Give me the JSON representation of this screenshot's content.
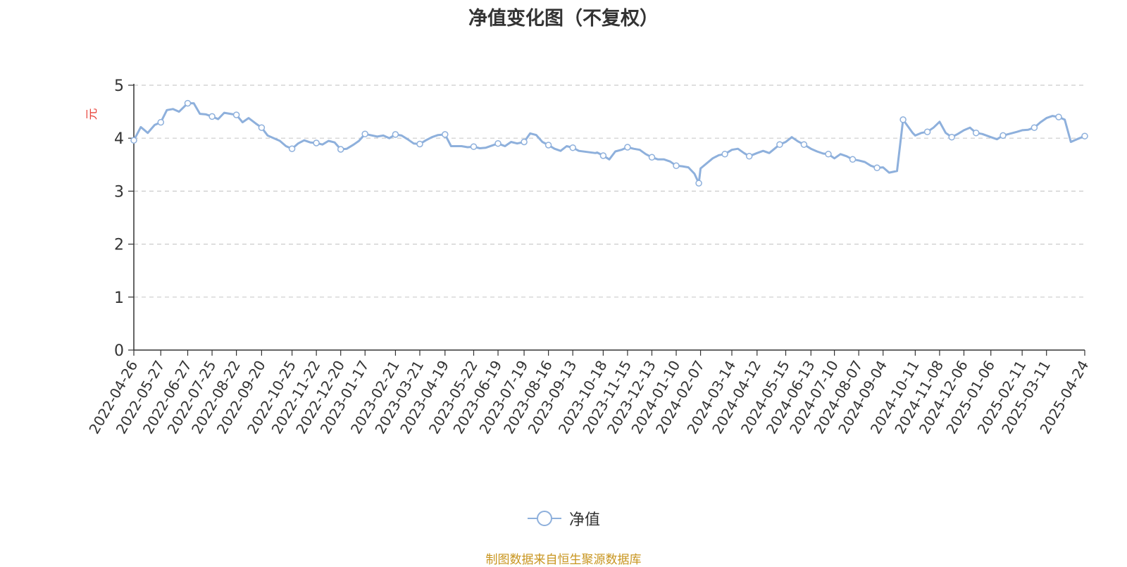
{
  "chart_data": {
    "type": "line",
    "title": "净值变化图（不复权）",
    "ylabel": "元",
    "ylim": [
      0,
      5
    ],
    "yticks": [
      0,
      1,
      2,
      3,
      4,
      5
    ],
    "grid": true,
    "legend_position": "bottom-center",
    "x_tick_labels": [
      "2022-04-26",
      "2022-05-27",
      "2022-06-27",
      "2022-07-25",
      "2022-08-22",
      "2022-09-20",
      "2022-10-25",
      "2022-11-22",
      "2022-12-20",
      "2023-01-17",
      "2023-02-21",
      "2023-03-21",
      "2023-04-19",
      "2023-05-22",
      "2023-06-19",
      "2023-07-19",
      "2023-08-16",
      "2023-09-13",
      "2023-10-18",
      "2023-11-15",
      "2023-12-13",
      "2024-01-10",
      "2024-02-07",
      "2024-03-14",
      "2024-04-12",
      "2024-05-15",
      "2024-06-13",
      "2024-07-10",
      "2024-08-07",
      "2024-09-04",
      "2024-10-11",
      "2024-11-08",
      "2024-12-06",
      "2025-01-06",
      "2025-02-11",
      "2025-03-11",
      "2025-04-24"
    ],
    "series": [
      {
        "name": "净值",
        "color": "#8eb0dc",
        "x": [
          "2022-04-26",
          "2022-05-04",
          "2022-05-12",
          "2022-05-20",
          "2022-05-27",
          "2022-06-03",
          "2022-06-10",
          "2022-06-17",
          "2022-06-27",
          "2022-07-04",
          "2022-07-11",
          "2022-07-18",
          "2022-07-25",
          "2022-08-01",
          "2022-08-08",
          "2022-08-15",
          "2022-08-22",
          "2022-08-29",
          "2022-09-05",
          "2022-09-13",
          "2022-09-20",
          "2022-09-27",
          "2022-10-11",
          "2022-10-18",
          "2022-10-25",
          "2022-11-01",
          "2022-11-08",
          "2022-11-15",
          "2022-11-22",
          "2022-11-29",
          "2022-12-06",
          "2022-12-13",
          "2022-12-20",
          "2022-12-27",
          "2023-01-04",
          "2023-01-10",
          "2023-01-17",
          "2023-01-31",
          "2023-02-07",
          "2023-02-14",
          "2023-02-21",
          "2023-02-28",
          "2023-03-07",
          "2023-03-14",
          "2023-03-21",
          "2023-03-28",
          "2023-04-04",
          "2023-04-11",
          "2023-04-19",
          "2023-04-26",
          "2023-05-08",
          "2023-05-15",
          "2023-05-22",
          "2023-05-29",
          "2023-06-05",
          "2023-06-12",
          "2023-06-19",
          "2023-06-27",
          "2023-07-04",
          "2023-07-11",
          "2023-07-19",
          "2023-07-26",
          "2023-08-02",
          "2023-08-09",
          "2023-08-16",
          "2023-08-23",
          "2023-08-30",
          "2023-09-06",
          "2023-09-13",
          "2023-09-20",
          "2023-10-09",
          "2023-10-11",
          "2023-10-18",
          "2023-10-25",
          "2023-11-01",
          "2023-11-08",
          "2023-11-15",
          "2023-11-22",
          "2023-11-29",
          "2023-12-06",
          "2023-12-13",
          "2023-12-20",
          "2023-12-27",
          "2024-01-03",
          "2024-01-10",
          "2024-01-17",
          "2024-01-24",
          "2024-01-31",
          "2024-02-05",
          "2024-02-07",
          "2024-02-21",
          "2024-02-28",
          "2024-03-06",
          "2024-03-14",
          "2024-03-21",
          "2024-03-28",
          "2024-04-03",
          "2024-04-12",
          "2024-04-19",
          "2024-04-26",
          "2024-05-08",
          "2024-05-15",
          "2024-05-22",
          "2024-05-29",
          "2024-06-05",
          "2024-06-13",
          "2024-06-20",
          "2024-06-27",
          "2024-07-03",
          "2024-07-10",
          "2024-07-17",
          "2024-07-24",
          "2024-07-31",
          "2024-08-07",
          "2024-08-14",
          "2024-08-21",
          "2024-08-28",
          "2024-09-04",
          "2024-09-11",
          "2024-09-20",
          "2024-09-27",
          "2024-10-08",
          "2024-10-11",
          "2024-10-18",
          "2024-10-25",
          "2024-11-01",
          "2024-11-08",
          "2024-11-15",
          "2024-11-22",
          "2024-11-29",
          "2024-12-06",
          "2024-12-13",
          "2024-12-20",
          "2024-12-27",
          "2025-01-06",
          "2025-01-13",
          "2025-01-20",
          "2025-02-05",
          "2025-02-11",
          "2025-02-18",
          "2025-02-25",
          "2025-03-04",
          "2025-03-11",
          "2025-03-18",
          "2025-03-25",
          "2025-04-01",
          "2025-04-08",
          "2025-04-15",
          "2025-04-24"
        ],
        "values": [
          3.96,
          4.21,
          4.1,
          4.25,
          4.3,
          4.53,
          4.55,
          4.5,
          4.66,
          4.66,
          4.46,
          4.45,
          4.41,
          4.36,
          4.48,
          4.46,
          4.44,
          4.3,
          4.38,
          4.28,
          4.2,
          4.05,
          3.95,
          3.85,
          3.8,
          3.9,
          3.96,
          3.92,
          3.91,
          3.88,
          3.95,
          3.92,
          3.79,
          3.8,
          3.88,
          3.95,
          4.08,
          4.03,
          4.05,
          4.0,
          4.07,
          4.05,
          3.98,
          3.9,
          3.89,
          3.96,
          4.02,
          4.06,
          4.07,
          3.85,
          3.85,
          3.83,
          3.84,
          3.81,
          3.82,
          3.86,
          3.9,
          3.85,
          3.93,
          3.9,
          3.93,
          4.09,
          4.06,
          3.93,
          3.87,
          3.8,
          3.76,
          3.85,
          3.82,
          3.76,
          3.72,
          3.73,
          3.67,
          3.6,
          3.75,
          3.78,
          3.83,
          3.8,
          3.78,
          3.7,
          3.64,
          3.6,
          3.6,
          3.56,
          3.48,
          3.47,
          3.45,
          3.33,
          3.15,
          3.43,
          3.62,
          3.68,
          3.7,
          3.78,
          3.8,
          3.72,
          3.66,
          3.72,
          3.76,
          3.72,
          3.88,
          3.93,
          4.02,
          3.94,
          3.88,
          3.8,
          3.75,
          3.71,
          3.7,
          3.62,
          3.7,
          3.66,
          3.6,
          3.58,
          3.55,
          3.48,
          3.44,
          3.45,
          3.35,
          3.38,
          4.35,
          4.1,
          4.05,
          4.1,
          4.12,
          4.2,
          4.31,
          4.1,
          4.02,
          4.08,
          4.15,
          4.2,
          4.1,
          4.08,
          4.02,
          3.98,
          4.05,
          4.12,
          4.15,
          4.16,
          4.2,
          4.3,
          4.38,
          4.42,
          4.4,
          4.35,
          3.93,
          3.98,
          4.04
        ]
      }
    ]
  },
  "source_note": "制图数据来自恒生聚源数据库"
}
